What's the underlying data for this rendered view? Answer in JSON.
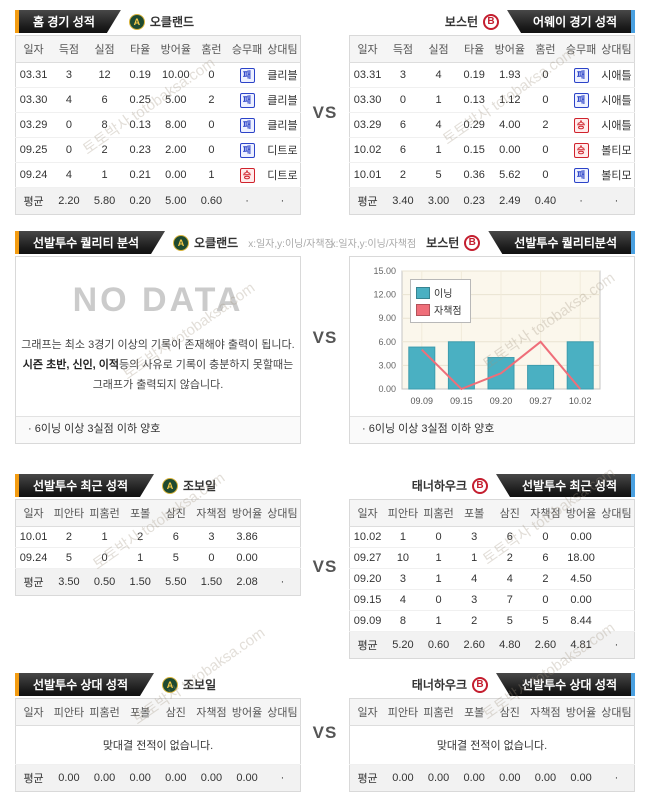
{
  "vs_label": "VS",
  "watermark": {
    "text": "토토박사 totobaksa.com"
  },
  "sections": {
    "home_record": {
      "title": "홈 경기 성적",
      "team": "오클랜드",
      "columns": [
        "일자",
        "득점",
        "실점",
        "타율",
        "방어율",
        "홈런",
        "승무패",
        "상대팀"
      ],
      "rows": [
        [
          "03.31",
          "3",
          "12",
          "0.19",
          "10.00",
          "0",
          "패",
          "클리블"
        ],
        [
          "03.30",
          "4",
          "6",
          "0.25",
          "5.00",
          "2",
          "패",
          "클리블"
        ],
        [
          "03.29",
          "0",
          "8",
          "0.13",
          "8.00",
          "0",
          "패",
          "클리블"
        ],
        [
          "09.25",
          "0",
          "2",
          "0.23",
          "2.00",
          "0",
          "패",
          "디트로"
        ],
        [
          "09.24",
          "4",
          "1",
          "0.21",
          "0.00",
          "1",
          "승",
          "디트로"
        ]
      ],
      "avg": [
        "평균",
        "2.20",
        "5.80",
        "0.20",
        "5.00",
        "0.60",
        "·",
        "·"
      ]
    },
    "away_record": {
      "title": "어웨이 경기 성적",
      "team": "보스턴",
      "columns": [
        "일자",
        "득점",
        "실점",
        "타율",
        "방어율",
        "홈런",
        "승무패",
        "상대팀"
      ],
      "rows": [
        [
          "03.31",
          "3",
          "4",
          "0.19",
          "1.93",
          "0",
          "패",
          "시애틀"
        ],
        [
          "03.30",
          "0",
          "1",
          "0.13",
          "1.12",
          "0",
          "패",
          "시애틀"
        ],
        [
          "03.29",
          "6",
          "4",
          "0.29",
          "4.00",
          "2",
          "승",
          "시애틀"
        ],
        [
          "10.02",
          "6",
          "1",
          "0.15",
          "0.00",
          "0",
          "승",
          "볼티모"
        ],
        [
          "10.01",
          "2",
          "5",
          "0.36",
          "5.62",
          "0",
          "패",
          "볼티모"
        ]
      ],
      "avg": [
        "평균",
        "3.40",
        "3.00",
        "0.23",
        "2.49",
        "0.40",
        "·",
        "·"
      ]
    },
    "quality_left": {
      "title": "선발투수 퀄리티 분석",
      "team": "오클랜드",
      "axis_note": "x:일자,y:이닝/자책점",
      "no_data": {
        "title": "NO DATA",
        "line1": "그래프는 최소 3경기 이상의 기록이 존재해야 출력이 됩니다.",
        "line2_bold": "시즌 초반, 신인, 이적",
        "line2_rest": "등의 사유로 기록이 충분하지 못할때는",
        "line3": "그래프가 출력되지 않습니다."
      },
      "footnote": "· 6이닝 이상 3실점 이하 양호"
    },
    "quality_right": {
      "title": "선발투수 퀄리티분석",
      "team": "보스턴",
      "axis_note": "x:일자,y:이닝/자책점",
      "footnote": "· 6이닝 이상 3실점 이하 양호"
    },
    "recent_left": {
      "title": "선발투수 최근 성적",
      "team": "조보일",
      "columns": [
        "일자",
        "피안타",
        "피홈런",
        "포볼",
        "삼진",
        "자책점",
        "방어율",
        "상대팀"
      ],
      "rows": [
        [
          "10.01",
          "2",
          "1",
          "2",
          "6",
          "3",
          "3.86",
          ""
        ],
        [
          "09.24",
          "5",
          "0",
          "1",
          "5",
          "0",
          "0.00",
          ""
        ]
      ],
      "avg": [
        "평균",
        "3.50",
        "0.50",
        "1.50",
        "5.50",
        "1.50",
        "2.08",
        "·"
      ]
    },
    "recent_right": {
      "title": "선발투수 최근 성적",
      "team": "태너하우크",
      "columns": [
        "일자",
        "피안타",
        "피홈런",
        "포볼",
        "삼진",
        "자책점",
        "방어율",
        "상대팀"
      ],
      "rows": [
        [
          "10.02",
          "1",
          "0",
          "3",
          "6",
          "0",
          "0.00",
          ""
        ],
        [
          "09.27",
          "10",
          "1",
          "1",
          "2",
          "6",
          "18.00",
          ""
        ],
        [
          "09.20",
          "3",
          "1",
          "4",
          "4",
          "2",
          "4.50",
          ""
        ],
        [
          "09.15",
          "4",
          "0",
          "3",
          "7",
          "0",
          "0.00",
          ""
        ],
        [
          "09.09",
          "8",
          "1",
          "2",
          "5",
          "5",
          "8.44",
          ""
        ]
      ],
      "avg": [
        "평균",
        "5.20",
        "0.60",
        "2.60",
        "4.80",
        "2.60",
        "4.81",
        "·"
      ]
    },
    "h2h_left": {
      "title": "선발투수 상대 성적",
      "team": "조보일",
      "columns": [
        "일자",
        "피안타",
        "피홈런",
        "포볼",
        "삼진",
        "자책점",
        "방어율",
        "상대팀"
      ],
      "empty_message": "맞대결 전적이 없습니다.",
      "avg": [
        "평균",
        "0.00",
        "0.00",
        "0.00",
        "0.00",
        "0.00",
        "0.00",
        "·"
      ]
    },
    "h2h_right": {
      "title": "선발투수 상대 성적",
      "team": "태너하우크",
      "columns": [
        "일자",
        "피안타",
        "피홈런",
        "포볼",
        "삼진",
        "자책점",
        "방어율",
        "상대팀"
      ],
      "empty_message": "맞대결 전적이 없습니다.",
      "avg": [
        "평균",
        "0.00",
        "0.00",
        "0.00",
        "0.00",
        "0.00",
        "0.00",
        "·"
      ]
    }
  },
  "chart_data": {
    "type": "bar",
    "title": "선발투수 퀄리티분석 (보스턴)",
    "xlabel": "일자",
    "ylabel": "이닝/자책점",
    "categories": [
      "09.09",
      "09.15",
      "09.20",
      "09.27",
      "10.02"
    ],
    "series": [
      {
        "name": "이닝",
        "type": "bar",
        "color": "#4ab0c2",
        "values": [
          5.33,
          6,
          4,
          3,
          6
        ]
      },
      {
        "name": "자책점",
        "type": "line",
        "color": "#ef6e79",
        "values": [
          5,
          0,
          2,
          6,
          0
        ]
      }
    ],
    "ylim": [
      0,
      15
    ],
    "yticks": [
      "0.00",
      "3.00",
      "6.00",
      "9.00",
      "12.00",
      "15.00"
    ],
    "grid": true,
    "legend_position": "top-left"
  }
}
